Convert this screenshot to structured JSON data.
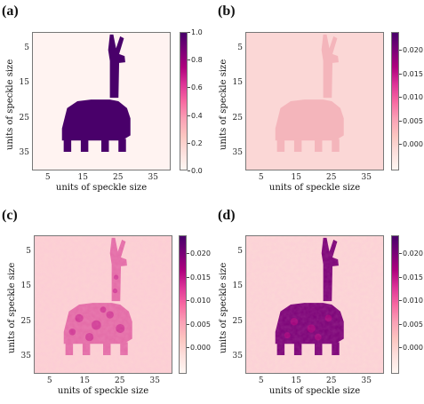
{
  "panels": [
    {
      "label": "(a)",
      "xlabel": "units of speckle size",
      "ylabel": "units of speckle size",
      "xticks": [
        "5",
        "15",
        "25",
        "35"
      ],
      "yticks": [
        "5",
        "15",
        "25",
        "35"
      ],
      "colorbar_ticks": [
        "1.0",
        "0.8",
        "0.6",
        "0.4",
        "0.2",
        "0.0"
      ],
      "colormap": "RdPu",
      "content": "binary llama object"
    },
    {
      "label": "(b)",
      "xlabel": "units of speckle size",
      "ylabel": "units of speckle size",
      "xticks": [
        "5",
        "15",
        "25",
        "35"
      ],
      "yticks": [
        "5",
        "15",
        "25",
        "35"
      ],
      "colorbar_ticks": [
        "0.020",
        "0.015",
        "0.010",
        "0.005",
        "0.000"
      ],
      "colormap": "RdPu",
      "content": "faint reconstruction"
    },
    {
      "label": "(c)",
      "xlabel": "units of speckle size",
      "ylabel": "units of speckle size",
      "xticks": [
        "5",
        "15",
        "25",
        "35"
      ],
      "yticks": [
        "5",
        "15",
        "25",
        "35"
      ],
      "colorbar_ticks": [
        "0.020",
        "0.015",
        "0.010",
        "0.005",
        "0.000"
      ],
      "colormap": "RdPu",
      "content": "noisy reconstruction"
    },
    {
      "label": "(d)",
      "xlabel": "units of speckle size",
      "ylabel": "units of speckle size",
      "xticks": [
        "5",
        "15",
        "25",
        "35"
      ],
      "yticks": [
        "5",
        "15",
        "25",
        "35"
      ],
      "colorbar_ticks": [
        "0.020",
        "0.015",
        "0.010",
        "0.005",
        "0.000"
      ],
      "colormap": "RdPu",
      "content": "strong reconstruction"
    }
  ],
  "colors": {
    "dark_purple": "#49006a",
    "mid_magenta": "#ae017e",
    "pink": "#f768a1",
    "light_pink": "#fcc5c0",
    "bg_pale": "#fff3f1"
  }
}
